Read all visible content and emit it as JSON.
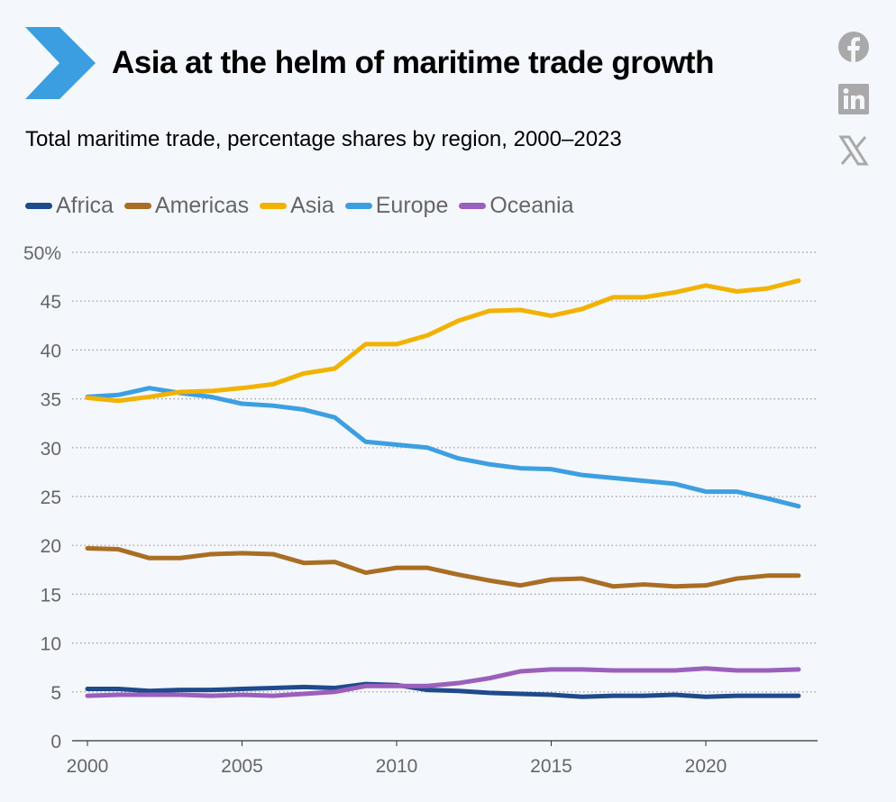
{
  "header": {
    "title": "Asia at the helm of maritime trade growth",
    "subtitle": "Total maritime trade, percentage shares by region, 2000–2023"
  },
  "social": [
    "facebook-icon",
    "linkedin-icon",
    "x-icon"
  ],
  "colors": {
    "accent": "#3b9ee0",
    "Africa": "#1f4a8c",
    "Americas": "#a96e24",
    "Asia": "#f2b200",
    "Europe": "#3d9fe2",
    "Oceania": "#9b5fbd"
  },
  "chart_data": {
    "type": "line",
    "title": "Total maritime trade, percentage shares by region, 2000–2023",
    "xlabel": "",
    "ylabel": "",
    "x": [
      2000,
      2001,
      2002,
      2003,
      2004,
      2005,
      2006,
      2007,
      2008,
      2009,
      2010,
      2011,
      2012,
      2013,
      2014,
      2015,
      2016,
      2017,
      2018,
      2019,
      2020,
      2021,
      2022,
      2023
    ],
    "xticks": [
      "2000",
      "2005",
      "2010",
      "2015",
      "2020"
    ],
    "yticks": [
      "0",
      "5",
      "10",
      "15",
      "20",
      "25",
      "30",
      "35",
      "40",
      "45",
      "50%"
    ],
    "ylim": [
      0,
      50
    ],
    "grid": true,
    "legend_position": "top-left",
    "series": [
      {
        "name": "Africa",
        "values": [
          5.3,
          5.3,
          5.1,
          5.2,
          5.2,
          5.3,
          5.4,
          5.5,
          5.4,
          5.8,
          5.7,
          5.2,
          5.1,
          4.9,
          4.8,
          4.7,
          4.5,
          4.6,
          4.6,
          4.7,
          4.5,
          4.6,
          4.6,
          4.6
        ]
      },
      {
        "name": "Americas",
        "values": [
          19.7,
          19.6,
          18.7,
          18.7,
          19.1,
          19.2,
          19.1,
          18.2,
          18.3,
          17.2,
          17.7,
          17.7,
          17.0,
          16.4,
          15.9,
          16.5,
          16.6,
          15.8,
          16.0,
          15.8,
          15.9,
          16.6,
          16.9,
          16.9
        ]
      },
      {
        "name": "Asia",
        "values": [
          35.1,
          34.8,
          35.2,
          35.7,
          35.8,
          36.1,
          36.5,
          37.6,
          38.1,
          40.6,
          40.6,
          41.5,
          43.0,
          44.0,
          44.1,
          43.5,
          44.2,
          45.4,
          45.4,
          45.9,
          46.6,
          46.0,
          46.3,
          47.1
        ]
      },
      {
        "name": "Europe",
        "values": [
          35.2,
          35.4,
          36.1,
          35.6,
          35.2,
          34.5,
          34.3,
          33.9,
          33.1,
          30.6,
          30.3,
          30.0,
          28.9,
          28.3,
          27.9,
          27.8,
          27.2,
          26.9,
          26.6,
          26.3,
          25.5,
          25.5,
          24.8,
          24.0
        ]
      },
      {
        "name": "Oceania",
        "values": [
          4.6,
          4.7,
          4.7,
          4.7,
          4.6,
          4.7,
          4.6,
          4.8,
          5.0,
          5.6,
          5.6,
          5.6,
          5.9,
          6.4,
          7.1,
          7.3,
          7.3,
          7.2,
          7.2,
          7.2,
          7.4,
          7.2,
          7.2,
          7.3
        ]
      }
    ]
  }
}
